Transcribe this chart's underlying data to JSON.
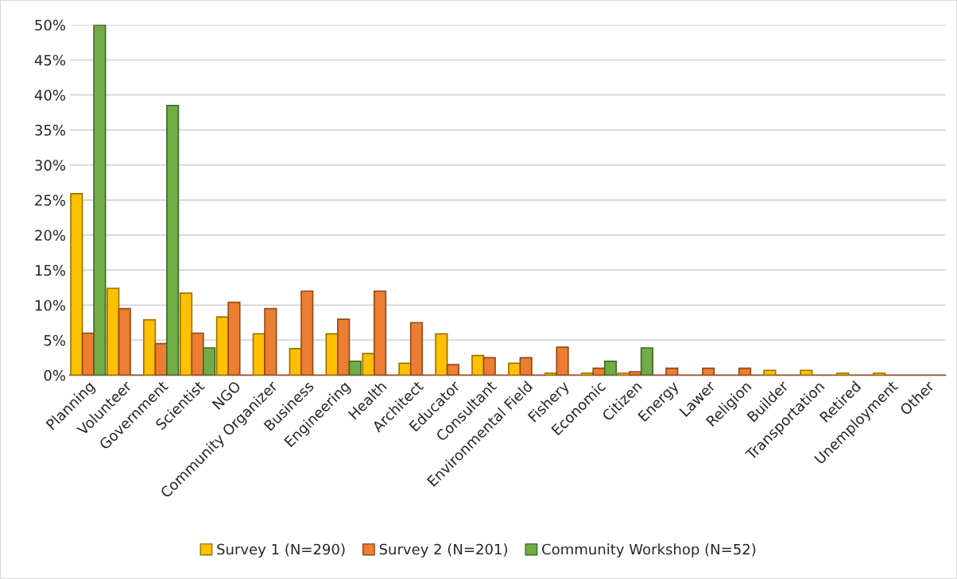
{
  "chart_data": {
    "type": "bar",
    "categories": [
      "Planning",
      "Volunteer",
      "Government",
      "Scientist",
      "NGO",
      "Community Organizer",
      "Business",
      "Engineering",
      "Health",
      "Architect",
      "Educator",
      "Consultant",
      "Environmental Field",
      "Fishery",
      "Economic",
      "Citizen",
      "Energy",
      "Lawer",
      "Religion",
      "Builder",
      "Transportation",
      "Retired",
      "Unemployment",
      "Other"
    ],
    "series": [
      {
        "name": "Survey 1 (N=290)",
        "color": "#ffc000",
        "values": [
          25.9,
          12.4,
          7.9,
          11.7,
          8.3,
          5.9,
          3.8,
          5.9,
          3.1,
          1.7,
          5.9,
          2.8,
          1.7,
          0.3,
          0.3,
          0.3,
          0,
          0,
          0,
          0.7,
          0.7,
          0.3,
          0.3,
          0
        ]
      },
      {
        "name": "Survey 2 (N=201)",
        "color": "#ed7d31",
        "values": [
          6.0,
          9.5,
          4.5,
          6.0,
          10.4,
          9.5,
          12.0,
          8.0,
          12.0,
          7.5,
          1.5,
          2.5,
          2.5,
          4.0,
          1.0,
          0.5,
          1.0,
          1.0,
          1.0,
          0,
          0,
          0,
          0,
          0
        ]
      },
      {
        "name": "Community Workshop (N=52)",
        "color": "#70ad47",
        "values": [
          50,
          0,
          38.5,
          3.9,
          0,
          0,
          0,
          2.0,
          0,
          0,
          0,
          0,
          0,
          0,
          2.0,
          3.9,
          0,
          0,
          0,
          0,
          0,
          0,
          0,
          0
        ]
      }
    ],
    "ylim": [
      0,
      50
    ],
    "yticks": [
      {
        "value": 0,
        "label": "0%"
      },
      {
        "value": 5,
        "label": "5%"
      },
      {
        "value": 10,
        "label": "10%"
      },
      {
        "value": 15,
        "label": "15%"
      },
      {
        "value": 20,
        "label": "20%"
      },
      {
        "value": 25,
        "label": "25%"
      },
      {
        "value": 30,
        "label": "30%"
      },
      {
        "value": 35,
        "label": "35%"
      },
      {
        "value": 40,
        "label": "40%"
      },
      {
        "value": 45,
        "label": "45%"
      },
      {
        "value": 50,
        "label": "50%"
      }
    ],
    "grid": "y",
    "legend": "bottom"
  }
}
